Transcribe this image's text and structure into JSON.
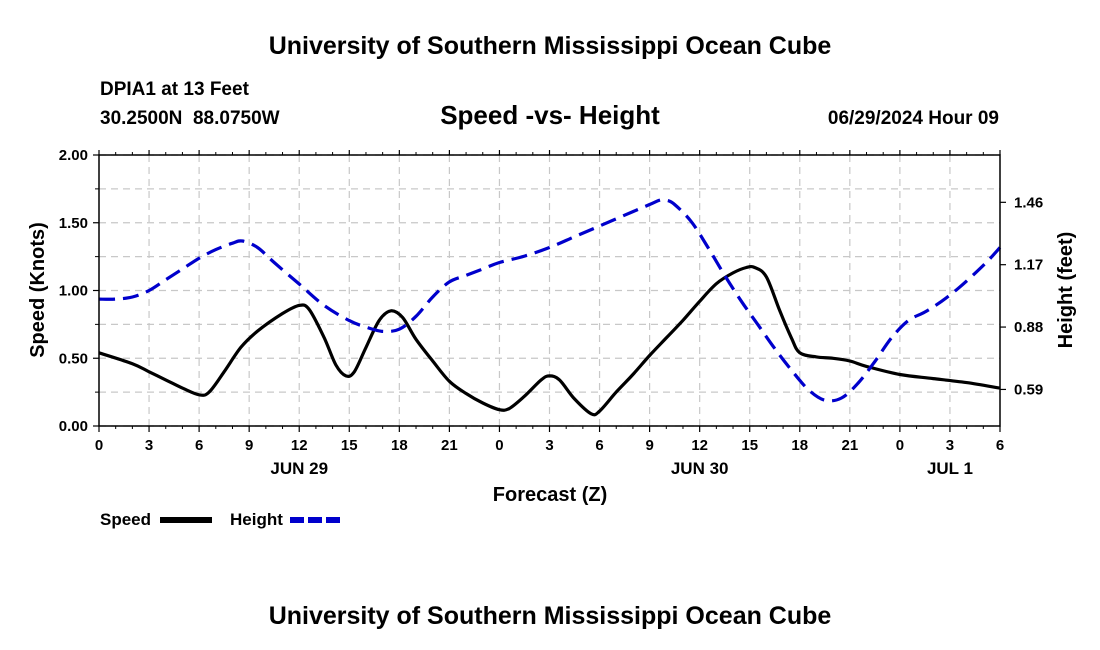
{
  "header": {
    "title": "University of Southern Mississippi Ocean Cube",
    "station": "DPIA1 at 13 Feet",
    "coords": "30.2500N  88.0750W",
    "chart_title": "Speed -vs- Height",
    "issued": "06/29/2024 Hour 09"
  },
  "footer": {
    "title": "University of Southern Mississippi Ocean Cube"
  },
  "chart_data": {
    "type": "line",
    "title": "Speed -vs- Height",
    "xlabel": "Forecast (Z)",
    "ylabel": "Speed (Knots)",
    "y2label": "Height (feet)",
    "x_range": [
      0,
      54
    ],
    "ylim": [
      0,
      2.0
    ],
    "y2lim": [
      0.42,
      1.68
    ],
    "grid": true,
    "legend_position": "bottom-left",
    "x_ticks": [
      {
        "x": 0,
        "label": "0"
      },
      {
        "x": 3,
        "label": "3"
      },
      {
        "x": 6,
        "label": "6"
      },
      {
        "x": 9,
        "label": "9"
      },
      {
        "x": 12,
        "label": "12"
      },
      {
        "x": 15,
        "label": "15"
      },
      {
        "x": 18,
        "label": "18"
      },
      {
        "x": 21,
        "label": "21"
      },
      {
        "x": 24,
        "label": "0"
      },
      {
        "x": 27,
        "label": "3"
      },
      {
        "x": 30,
        "label": "6"
      },
      {
        "x": 33,
        "label": "9"
      },
      {
        "x": 36,
        "label": "12"
      },
      {
        "x": 39,
        "label": "15"
      },
      {
        "x": 42,
        "label": "18"
      },
      {
        "x": 45,
        "label": "21"
      },
      {
        "x": 48,
        "label": "0"
      },
      {
        "x": 51,
        "label": "3"
      },
      {
        "x": 54,
        "label": "6"
      }
    ],
    "date_labels": [
      {
        "x": 12,
        "label": "JUN 29"
      },
      {
        "x": 36,
        "label": "JUN 30"
      },
      {
        "x": 51,
        "label": "JUL 1"
      }
    ],
    "y_ticks": [
      {
        "v": 0.0,
        "label": "0.00"
      },
      {
        "v": 0.5,
        "label": "0.50"
      },
      {
        "v": 1.0,
        "label": "1.00"
      },
      {
        "v": 1.5,
        "label": "1.50"
      },
      {
        "v": 2.0,
        "label": "2.00"
      }
    ],
    "y2_ticks": [
      {
        "v": 0.59,
        "label": "0.59"
      },
      {
        "v": 0.88,
        "label": "0.88"
      },
      {
        "v": 1.17,
        "label": "1.17"
      },
      {
        "v": 1.46,
        "label": "1.46"
      }
    ],
    "series": [
      {
        "name": "Speed",
        "axis": "left",
        "color": "#000000",
        "dash": false,
        "points": [
          [
            0,
            0.54
          ],
          [
            2,
            0.46
          ],
          [
            3,
            0.4
          ],
          [
            4,
            0.34
          ],
          [
            5,
            0.28
          ],
          [
            6,
            0.23
          ],
          [
            6.6,
            0.25
          ],
          [
            7.5,
            0.4
          ],
          [
            8.5,
            0.58
          ],
          [
            9.5,
            0.7
          ],
          [
            11,
            0.83
          ],
          [
            12,
            0.89
          ],
          [
            12.6,
            0.86
          ],
          [
            13.5,
            0.65
          ],
          [
            14.2,
            0.45
          ],
          [
            14.8,
            0.37
          ],
          [
            15.3,
            0.4
          ],
          [
            16,
            0.58
          ],
          [
            16.8,
            0.78
          ],
          [
            17.5,
            0.85
          ],
          [
            18.2,
            0.8
          ],
          [
            19,
            0.64
          ],
          [
            20,
            0.48
          ],
          [
            21,
            0.33
          ],
          [
            22,
            0.24
          ],
          [
            23,
            0.17
          ],
          [
            24,
            0.12
          ],
          [
            24.6,
            0.13
          ],
          [
            25.5,
            0.22
          ],
          [
            26.5,
            0.34
          ],
          [
            27,
            0.37
          ],
          [
            27.6,
            0.34
          ],
          [
            28.5,
            0.2
          ],
          [
            29.5,
            0.09
          ],
          [
            30,
            0.11
          ],
          [
            31,
            0.25
          ],
          [
            32,
            0.38
          ],
          [
            33,
            0.52
          ],
          [
            34,
            0.65
          ],
          [
            35,
            0.78
          ],
          [
            36,
            0.92
          ],
          [
            37,
            1.05
          ],
          [
            38,
            1.13
          ],
          [
            38.8,
            1.17
          ],
          [
            39.3,
            1.17
          ],
          [
            40,
            1.1
          ],
          [
            40.8,
            0.85
          ],
          [
            41.5,
            0.65
          ],
          [
            42,
            0.54
          ],
          [
            43,
            0.51
          ],
          [
            44,
            0.5
          ],
          [
            45,
            0.48
          ],
          [
            46,
            0.44
          ],
          [
            48,
            0.38
          ],
          [
            50,
            0.35
          ],
          [
            52,
            0.32
          ],
          [
            54,
            0.28
          ]
        ]
      },
      {
        "name": "Height",
        "axis": "right",
        "color": "#0000cc",
        "dash": true,
        "points": [
          [
            0,
            1.01
          ],
          [
            1,
            1.01
          ],
          [
            2,
            1.02
          ],
          [
            3,
            1.05
          ],
          [
            4,
            1.1
          ],
          [
            5,
            1.15
          ],
          [
            6,
            1.2
          ],
          [
            7,
            1.24
          ],
          [
            8,
            1.27
          ],
          [
            8.6,
            1.28
          ],
          [
            9.5,
            1.25
          ],
          [
            10.5,
            1.18
          ],
          [
            12,
            1.08
          ],
          [
            13.5,
            0.98
          ],
          [
            15,
            0.91
          ],
          [
            16,
            0.88
          ],
          [
            17,
            0.86
          ],
          [
            18,
            0.87
          ],
          [
            19,
            0.93
          ],
          [
            20,
            1.02
          ],
          [
            21,
            1.09
          ],
          [
            22,
            1.12
          ],
          [
            23,
            1.15
          ],
          [
            24,
            1.18
          ],
          [
            25.5,
            1.21
          ],
          [
            27,
            1.25
          ],
          [
            28.5,
            1.3
          ],
          [
            30,
            1.35
          ],
          [
            31.5,
            1.4
          ],
          [
            33,
            1.45
          ],
          [
            33.6,
            1.47
          ],
          [
            34,
            1.47
          ],
          [
            34.5,
            1.45
          ],
          [
            35.5,
            1.37
          ],
          [
            36.5,
            1.25
          ],
          [
            37.5,
            1.12
          ],
          [
            38.5,
            1.0
          ],
          [
            39.5,
            0.89
          ],
          [
            40.5,
            0.78
          ],
          [
            41.5,
            0.68
          ],
          [
            42.5,
            0.59
          ],
          [
            43.5,
            0.54
          ],
          [
            44.5,
            0.55
          ],
          [
            45.5,
            0.62
          ],
          [
            46.5,
            0.72
          ],
          [
            47.5,
            0.83
          ],
          [
            48.5,
            0.91
          ],
          [
            49.5,
            0.95
          ],
          [
            50.5,
            1.0
          ],
          [
            51.5,
            1.06
          ],
          [
            52.5,
            1.13
          ],
          [
            53.3,
            1.19
          ],
          [
            54,
            1.25
          ]
        ]
      }
    ]
  }
}
